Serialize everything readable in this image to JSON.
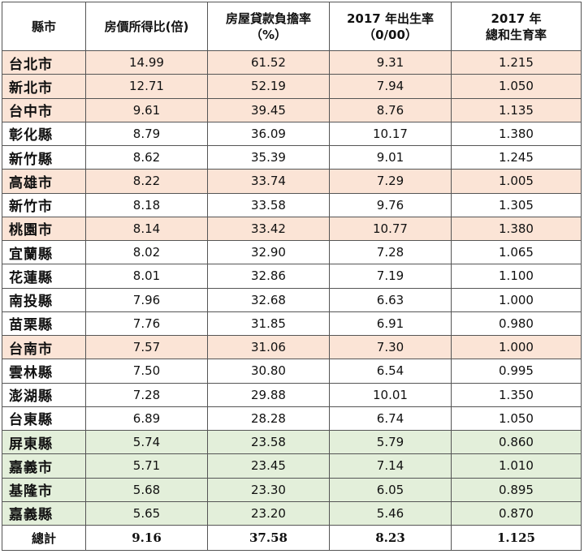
{
  "table": {
    "headers": [
      {
        "line1": "縣市",
        "line2": ""
      },
      {
        "line1": "房價所得比(倍)",
        "line2": ""
      },
      {
        "line1": "房屋貸款負擔率",
        "line2": "（%）"
      },
      {
        "line1": "2017 年出生率",
        "line2": "（0/00）"
      },
      {
        "line1": "2017 年",
        "line2": "總和生育率"
      }
    ],
    "rows": [
      {
        "county": "台北市",
        "ratio": "14.99",
        "burden": "61.52",
        "birth": "9.31",
        "tfr": "1.215",
        "highlight": "pink"
      },
      {
        "county": "新北市",
        "ratio": "12.71",
        "burden": "52.19",
        "birth": "7.94",
        "tfr": "1.050",
        "highlight": "pink"
      },
      {
        "county": "台中市",
        "ratio": "9.61",
        "burden": "39.45",
        "birth": "8.76",
        "tfr": "1.135",
        "highlight": "pink"
      },
      {
        "county": "彰化縣",
        "ratio": "8.79",
        "burden": "36.09",
        "birth": "10.17",
        "tfr": "1.380",
        "highlight": "none"
      },
      {
        "county": "新竹縣",
        "ratio": "8.62",
        "burden": "35.39",
        "birth": "9.01",
        "tfr": "1.245",
        "highlight": "none"
      },
      {
        "county": "高雄市",
        "ratio": "8.22",
        "burden": "33.74",
        "birth": "7.29",
        "tfr": "1.005",
        "highlight": "pink"
      },
      {
        "county": "新竹市",
        "ratio": "8.18",
        "burden": "33.58",
        "birth": "9.76",
        "tfr": "1.305",
        "highlight": "none"
      },
      {
        "county": "桃園市",
        "ratio": "8.14",
        "burden": "33.42",
        "birth": "10.77",
        "tfr": "1.380",
        "highlight": "pink"
      },
      {
        "county": "宜蘭縣",
        "ratio": "8.02",
        "burden": "32.90",
        "birth": "7.28",
        "tfr": "1.065",
        "highlight": "none"
      },
      {
        "county": "花蓮縣",
        "ratio": "8.01",
        "burden": "32.86",
        "birth": "7.19",
        "tfr": "1.100",
        "highlight": "none"
      },
      {
        "county": "南投縣",
        "ratio": "7.96",
        "burden": "32.68",
        "birth": "6.63",
        "tfr": "1.000",
        "highlight": "none"
      },
      {
        "county": "苗栗縣",
        "ratio": "7.76",
        "burden": "31.85",
        "birth": "6.91",
        "tfr": "0.980",
        "highlight": "none"
      },
      {
        "county": "台南市",
        "ratio": "7.57",
        "burden": "31.06",
        "birth": "7.30",
        "tfr": "1.000",
        "highlight": "pink"
      },
      {
        "county": "雲林縣",
        "ratio": "7.50",
        "burden": "30.80",
        "birth": "6.54",
        "tfr": "0.995",
        "highlight": "none"
      },
      {
        "county": "澎湖縣",
        "ratio": "7.28",
        "burden": "29.88",
        "birth": "10.01",
        "tfr": "1.350",
        "highlight": "none"
      },
      {
        "county": "台東縣",
        "ratio": "6.89",
        "burden": "28.28",
        "birth": "6.74",
        "tfr": "1.050",
        "highlight": "none"
      },
      {
        "county": "屏東縣",
        "ratio": "5.74",
        "burden": "23.58",
        "birth": "5.79",
        "tfr": "0.860",
        "highlight": "green"
      },
      {
        "county": "嘉義市",
        "ratio": "5.71",
        "burden": "23.45",
        "birth": "7.14",
        "tfr": "1.010",
        "highlight": "green"
      },
      {
        "county": "基隆市",
        "ratio": "5.68",
        "burden": "23.30",
        "birth": "6.05",
        "tfr": "0.895",
        "highlight": "green"
      },
      {
        "county": "嘉義縣",
        "ratio": "5.65",
        "burden": "23.20",
        "birth": "5.46",
        "tfr": "0.870",
        "highlight": "green"
      }
    ],
    "total": {
      "county": "總計",
      "ratio": "9.16",
      "burden": "37.58",
      "birth": "8.23",
      "tfr": "1.125"
    },
    "colors": {
      "pink": "#fbe4d6",
      "green": "#e3efda",
      "border": "#555555"
    }
  }
}
